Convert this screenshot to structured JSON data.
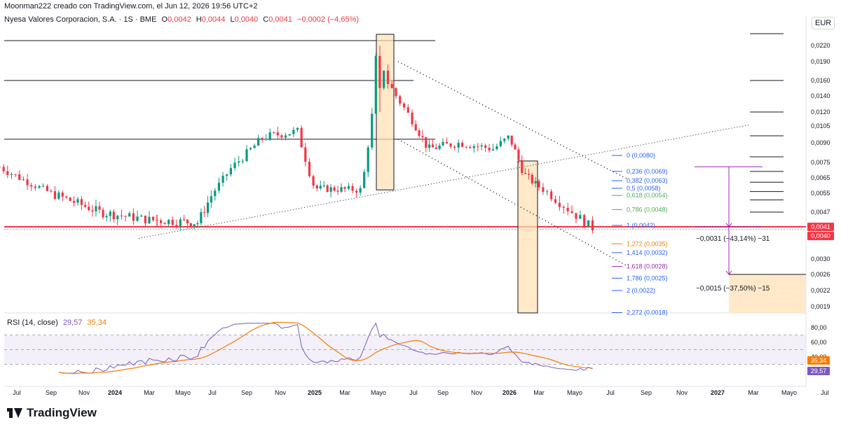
{
  "header": {
    "author_line": "Moonman222 creado con TradingView.com, el Jun 12, 2026 19:56 UTC+2"
  },
  "legend": {
    "symbol": "Nyesa Valores Corporacion, S.A. · 1S · BME",
    "open_key": "O",
    "open": "0,0042",
    "high_key": "H",
    "high": "0,0044",
    "low_key": "L",
    "low": "0,0040",
    "close_key": "C",
    "close": "0,0041",
    "change": "−0,0002 (−4,65%)"
  },
  "currency": "EUR",
  "rsi": {
    "label": "RSI (14, close)",
    "rsi_value": "29,57",
    "ma_value": "35,34",
    "ticks": [
      "80,00",
      "60,00",
      "40,00",
      "20,00"
    ]
  },
  "price_ticks": [
    "0,0220",
    "0,0190",
    "0,0160",
    "0,0140",
    "0,0120",
    "0,0105",
    "0,0090",
    "0,0075",
    "0,0065",
    "0,0055",
    "0,0047",
    "0,0041",
    "0,0040",
    "0,0030",
    "0,0026",
    "0,0022",
    "0,0019"
  ],
  "price_badges": [
    {
      "label": "0,0041",
      "color": "#f23645"
    },
    {
      "label": "0,0040",
      "color": "#f23645"
    }
  ],
  "rsi_badges": [
    {
      "label": "35,34",
      "color": "#f57c00"
    },
    {
      "label": "29,57",
      "color": "#7e57c2"
    }
  ],
  "time_ticks": [
    "Jul",
    "Sep",
    "Nov",
    "2024",
    "Mar",
    "Mayo",
    "Jul",
    "Sep",
    "Nov",
    "2025",
    "Mar",
    "Mayo",
    "Jul",
    "Sep",
    "Nov",
    "2026",
    "Mar",
    "Mayo",
    "Jul",
    "Sep",
    "Nov",
    "2027",
    "Mar",
    "Mayo",
    "Jul"
  ],
  "fib_levels": [
    {
      "label": "0 (0,0080)",
      "color": "#2962ff"
    },
    {
      "label": "0,236 (0,0069)",
      "color": "#2962ff"
    },
    {
      "label": "0,382 (0,0063)",
      "color": "#2962ff"
    },
    {
      "label": "0,5 (0,0058)",
      "color": "#2962ff"
    },
    {
      "label": "0,618 (0,0054)",
      "color": "#4caf50"
    },
    {
      "label": "0,786 (0,0048)",
      "color": "#4caf50"
    },
    {
      "label": "1 (0,0042)",
      "color": "#2962ff"
    },
    {
      "label": "1,272 (0,0035)",
      "color": "#f57c00"
    },
    {
      "label": "1,414 (0,0032)",
      "color": "#2962ff"
    },
    {
      "label": "1,618 (0,0028)",
      "color": "#9c27b0"
    },
    {
      "label": "1,786 (0,0025)",
      "color": "#2962ff"
    },
    {
      "label": "2 (0,0022)",
      "color": "#2962ff"
    },
    {
      "label": "2,272 (0,0018)",
      "color": "#2962ff"
    }
  ],
  "measures": [
    {
      "label": "−0,0031 (−43,14%) −31"
    },
    {
      "label": "−0,0015 (−37,50%) −15"
    }
  ],
  "colors": {
    "up": "#089981",
    "down": "#f23645",
    "rsi": "#7e57c2",
    "rsi_ma": "#f57c00",
    "support": "#f23645"
  },
  "brand": "TradingView",
  "chart_data": {
    "type": "candlestick",
    "title": "Nyesa Valores Corporacion, S.A. · 1S · BME",
    "interval": "weekly",
    "currency": "EUR",
    "x_start": "2023-06",
    "x_end": "2026-06",
    "scale": "log",
    "approx_close": [
      {
        "date": "2023-06",
        "close": 0.0072
      },
      {
        "date": "2023-09",
        "close": 0.0055
      },
      {
        "date": "2023-12",
        "close": 0.0047
      },
      {
        "date": "2024-03",
        "close": 0.0044
      },
      {
        "date": "2024-06",
        "close": 0.0043
      },
      {
        "date": "2024-08",
        "close": 0.007
      },
      {
        "date": "2024-10",
        "close": 0.0095
      },
      {
        "date": "2024-12",
        "close": 0.01
      },
      {
        "date": "2025-01",
        "close": 0.0058
      },
      {
        "date": "2025-04",
        "close": 0.0057
      },
      {
        "date": "2025-05",
        "close": 0.018
      },
      {
        "date": "2025-06",
        "close": 0.014
      },
      {
        "date": "2025-08",
        "close": 0.0085
      },
      {
        "date": "2025-10",
        "close": 0.009
      },
      {
        "date": "2025-12",
        "close": 0.0085
      },
      {
        "date": "2026-01",
        "close": 0.0095
      },
      {
        "date": "2026-02",
        "close": 0.0067
      },
      {
        "date": "2026-04",
        "close": 0.0052
      },
      {
        "date": "2026-06",
        "close": 0.0041
      }
    ],
    "peak": {
      "date": "2025-05",
      "high": 0.022
    },
    "last": {
      "open": 0.0042,
      "high": 0.0044,
      "low": 0.004,
      "close": 0.0041
    },
    "rsi": {
      "period": 14,
      "last": 29.57,
      "ma_last": 35.34,
      "range": [
        20,
        80
      ]
    }
  }
}
